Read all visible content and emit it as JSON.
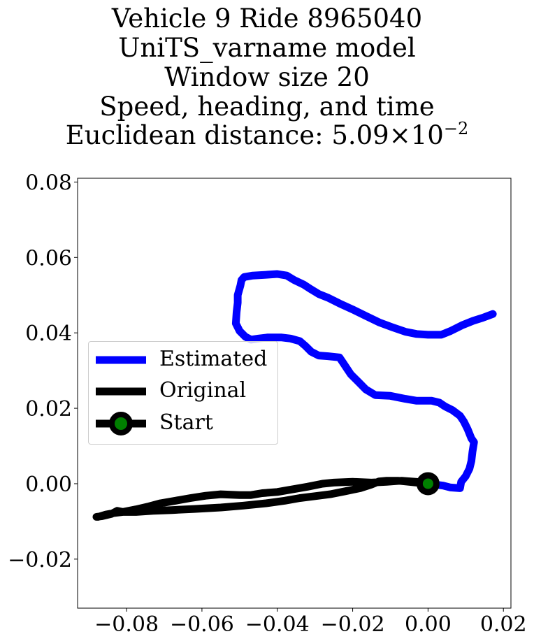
{
  "chart_data": {
    "type": "line",
    "title_lines": [
      "Vehicle 9 Ride 8965040",
      "UniTS_varname model",
      "Window size 20",
      "Speed, heading, and time"
    ],
    "distance_label": "Euclidean distance: ",
    "distance_mantissa": "5.09",
    "distance_times": "×",
    "distance_base": "10",
    "distance_exponent": "−2",
    "xlim": [
      -0.093,
      0.022
    ],
    "ylim": [
      -0.033,
      0.081
    ],
    "xticks": [
      -0.08,
      -0.06,
      -0.04,
      -0.02,
      0.0,
      0.02
    ],
    "xtick_labels": [
      "−0.08",
      "−0.06",
      "−0.04",
      "−0.02",
      "0.00",
      "0.02"
    ],
    "yticks": [
      -0.02,
      0.0,
      0.02,
      0.04,
      0.06,
      0.08
    ],
    "ytick_labels": [
      "−0.02",
      "0.00",
      "0.02",
      "0.04",
      "0.06",
      "0.08"
    ],
    "grid": false,
    "legend_position": "center-left",
    "series": [
      {
        "name": "Estimated",
        "color": "#0000ff",
        "points": [
          [
            0.0,
            0.0
          ],
          [
            0.004,
            -0.0005
          ],
          [
            0.006,
            -0.001
          ],
          [
            0.0085,
            -0.0012
          ],
          [
            0.0088,
            0.0005
          ],
          [
            0.01,
            0.002
          ],
          [
            0.011,
            0.004
          ],
          [
            0.0115,
            0.006
          ],
          [
            0.0118,
            0.0085
          ],
          [
            0.0122,
            0.011
          ],
          [
            0.0115,
            0.012
          ],
          [
            0.0105,
            0.0145
          ],
          [
            0.0095,
            0.0165
          ],
          [
            0.0085,
            0.018
          ],
          [
            0.0065,
            0.0195
          ],
          [
            0.0045,
            0.0205
          ],
          [
            0.003,
            0.0215
          ],
          [
            0.001,
            0.022
          ],
          [
            -0.001,
            0.022
          ],
          [
            -0.003,
            0.022
          ],
          [
            -0.006,
            0.0225
          ],
          [
            -0.01,
            0.0233
          ],
          [
            -0.014,
            0.0235
          ],
          [
            -0.0165,
            0.025
          ],
          [
            -0.0185,
            0.027
          ],
          [
            -0.0205,
            0.029
          ],
          [
            -0.0215,
            0.0305
          ],
          [
            -0.0225,
            0.032
          ],
          [
            -0.0235,
            0.0335
          ],
          [
            -0.0265,
            0.0338
          ],
          [
            -0.029,
            0.034
          ],
          [
            -0.031,
            0.035
          ],
          [
            -0.0325,
            0.0365
          ],
          [
            -0.034,
            0.0378
          ],
          [
            -0.0365,
            0.0385
          ],
          [
            -0.039,
            0.0388
          ],
          [
            -0.0425,
            0.0388
          ],
          [
            -0.045,
            0.0385
          ],
          [
            -0.047,
            0.0382
          ],
          [
            -0.0485,
            0.039
          ],
          [
            -0.05,
            0.0405
          ],
          [
            -0.051,
            0.0425
          ],
          [
            -0.0508,
            0.0455
          ],
          [
            -0.0505,
            0.048
          ],
          [
            -0.0505,
            0.05
          ],
          [
            -0.0498,
            0.0525
          ],
          [
            -0.0495,
            0.054
          ],
          [
            -0.0488,
            0.0548
          ],
          [
            -0.0465,
            0.0552
          ],
          [
            -0.043,
            0.0554
          ],
          [
            -0.04,
            0.0556
          ],
          [
            -0.0375,
            0.0552
          ],
          [
            -0.0355,
            0.054
          ],
          [
            -0.033,
            0.0528
          ],
          [
            -0.031,
            0.0515
          ],
          [
            -0.029,
            0.0503
          ],
          [
            -0.0265,
            0.0493
          ],
          [
            -0.0235,
            0.0478
          ],
          [
            -0.02,
            0.0462
          ],
          [
            -0.0165,
            0.0445
          ],
          [
            -0.013,
            0.0428
          ],
          [
            -0.0095,
            0.0415
          ],
          [
            -0.006,
            0.0403
          ],
          [
            -0.003,
            0.0397
          ],
          [
            0.0,
            0.0395
          ],
          [
            0.0035,
            0.0395
          ],
          [
            0.006,
            0.0405
          ],
          [
            0.009,
            0.042
          ],
          [
            0.012,
            0.0432
          ],
          [
            0.0145,
            0.044
          ],
          [
            0.0172,
            0.045
          ]
        ]
      },
      {
        "name": "Original",
        "color": "#000000",
        "points": [
          [
            0.0,
            0.0
          ],
          [
            -0.003,
            0.0005
          ],
          [
            -0.007,
            0.0008
          ],
          [
            -0.011,
            0.0005
          ],
          [
            -0.015,
            0.0003
          ],
          [
            -0.02,
            0.0005
          ],
          [
            -0.025,
            0.0003
          ],
          [
            -0.028,
            0.0
          ],
          [
            -0.032,
            -0.0008
          ],
          [
            -0.036,
            -0.0015
          ],
          [
            -0.04,
            -0.0022
          ],
          [
            -0.044,
            -0.0025
          ],
          [
            -0.047,
            -0.003
          ],
          [
            -0.05,
            -0.003
          ],
          [
            -0.055,
            -0.0028
          ],
          [
            -0.059,
            -0.0032
          ],
          [
            -0.063,
            -0.0038
          ],
          [
            -0.067,
            -0.0045
          ],
          [
            -0.071,
            -0.0052
          ],
          [
            -0.074,
            -0.006
          ],
          [
            -0.0775,
            -0.0068
          ],
          [
            -0.081,
            -0.0075
          ],
          [
            -0.0835,
            -0.0078
          ],
          [
            -0.0855,
            -0.0082
          ],
          [
            -0.0875,
            -0.0088
          ],
          [
            -0.088,
            -0.0088
          ],
          [
            -0.0865,
            -0.0086
          ],
          [
            -0.084,
            -0.008
          ],
          [
            -0.0825,
            -0.0072
          ],
          [
            -0.081,
            -0.0075
          ],
          [
            -0.0775,
            -0.0075
          ],
          [
            -0.073,
            -0.0072
          ],
          [
            -0.068,
            -0.007
          ],
          [
            -0.062,
            -0.0067
          ],
          [
            -0.055,
            -0.0063
          ],
          [
            -0.049,
            -0.0058
          ],
          [
            -0.043,
            -0.0052
          ],
          [
            -0.038,
            -0.0045
          ],
          [
            -0.034,
            -0.0038
          ],
          [
            -0.03,
            -0.0033
          ],
          [
            -0.026,
            -0.0028
          ],
          [
            -0.022,
            -0.002
          ],
          [
            -0.018,
            -0.0012
          ],
          [
            -0.015,
            -0.0002
          ],
          [
            -0.013,
            0.0006
          ],
          [
            -0.011,
            0.0008
          ],
          [
            -0.008,
            0.0008
          ],
          [
            -0.005,
            0.0005
          ],
          [
            -0.003,
            0.0003
          ],
          [
            0.0,
            0.0
          ]
        ]
      },
      {
        "name": "Start",
        "color": "#000000",
        "marker_color": "#008000",
        "points": [
          [
            0.0,
            0.0
          ]
        ]
      }
    ]
  }
}
